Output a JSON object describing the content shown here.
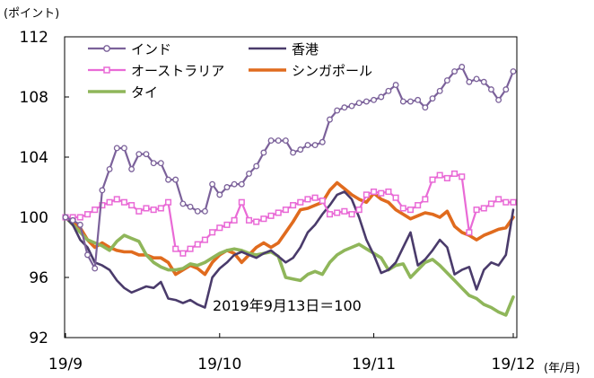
{
  "chart_data": {
    "type": "line",
    "unit_label": "(ポイント)",
    "axis_unit_label": "(年/月)",
    "annotation": "2019年9月13日＝100",
    "ylim": [
      92,
      112
    ],
    "yticks": [
      92,
      96,
      100,
      104,
      108,
      112
    ],
    "x_count": 62,
    "xticks": [
      {
        "index": 0,
        "label": "19/9"
      },
      {
        "index": 21,
        "label": "19/10"
      },
      {
        "index": 42,
        "label": "19/11"
      },
      {
        "index": 61,
        "label": "19/12"
      }
    ],
    "series": [
      {
        "name": "インド",
        "color": "#7b619a",
        "marker": "circle",
        "values": [
          100,
          99.8,
          99.5,
          97.5,
          96.6,
          101.8,
          103.2,
          104.6,
          104.6,
          103.2,
          104.2,
          104.2,
          103.6,
          103.6,
          102.5,
          102.5,
          100.9,
          100.7,
          100.4,
          100.4,
          102.2,
          101.5,
          102.0,
          102.2,
          102.2,
          102.9,
          103.4,
          104.3,
          105.1,
          105.1,
          105.1,
          104.3,
          104.5,
          104.8,
          104.8,
          105.0,
          106.5,
          107.1,
          107.3,
          107.4,
          107.6,
          107.7,
          107.8,
          108.0,
          108.4,
          108.8,
          107.7,
          107.7,
          107.8,
          107.3,
          107.9,
          108.4,
          109.1,
          109.7,
          110.0,
          109.0,
          109.2,
          109.0,
          108.5,
          107.8,
          108.5,
          109.7
        ]
      },
      {
        "name": "香港",
        "color": "#4a3b6b",
        "marker": "none",
        "values": [
          100,
          99.5,
          98.5,
          98.0,
          97.0,
          96.8,
          96.5,
          95.8,
          95.3,
          95.0,
          95.2,
          95.4,
          95.3,
          95.7,
          94.6,
          94.5,
          94.3,
          94.5,
          94.2,
          94.0,
          96.0,
          96.6,
          97.0,
          97.5,
          97.7,
          97.5,
          97.3,
          97.6,
          97.8,
          97.4,
          97.0,
          97.3,
          98.0,
          99.0,
          99.5,
          100.2,
          100.8,
          101.5,
          101.7,
          101.2,
          100.0,
          98.5,
          97.5,
          96.3,
          96.5,
          97.0,
          98.0,
          99.0,
          96.8,
          97.2,
          97.8,
          98.5,
          98.0,
          96.2,
          96.5,
          96.7,
          95.2,
          96.5,
          97.0,
          96.8,
          97.5,
          100.5
        ]
      },
      {
        "name": "オーストラリア",
        "color": "#e96ad6",
        "marker": "square",
        "values": [
          100,
          100,
          100,
          100.2,
          100.5,
          100.8,
          101.0,
          101.2,
          101.0,
          100.8,
          100.4,
          100.6,
          100.5,
          100.6,
          101.0,
          97.9,
          97.6,
          97.9,
          98.2,
          98.5,
          99.0,
          99.3,
          99.5,
          99.8,
          101.0,
          99.8,
          99.7,
          99.9,
          100.1,
          100.3,
          100.5,
          100.8,
          101.0,
          101.2,
          101.3,
          101.1,
          100.2,
          100.3,
          100.4,
          100.2,
          100.5,
          101.5,
          101.7,
          101.6,
          101.7,
          101.3,
          100.6,
          100.5,
          100.8,
          101.2,
          102.5,
          102.8,
          102.6,
          102.9,
          102.7,
          99.0,
          100.5,
          100.6,
          100.9,
          101.2,
          101.0,
          101.0
        ]
      },
      {
        "name": "シンガポール",
        "color": "#e06b1e",
        "marker": "none",
        "values": [
          100,
          99.8,
          99.3,
          98.5,
          98.0,
          98.3,
          98.0,
          97.8,
          97.7,
          97.7,
          97.5,
          97.5,
          97.3,
          97.3,
          97.0,
          96.2,
          96.5,
          96.8,
          96.6,
          96.2,
          97.0,
          97.5,
          97.8,
          97.6,
          97.0,
          97.5,
          98.0,
          98.3,
          98.0,
          98.3,
          99.0,
          99.7,
          100.5,
          100.6,
          100.8,
          101.0,
          101.8,
          102.3,
          101.9,
          101.5,
          101.2,
          101.0,
          101.6,
          101.2,
          101.0,
          100.5,
          100.2,
          99.9,
          100.1,
          100.3,
          100.2,
          100.0,
          100.4,
          99.4,
          99.0,
          98.8,
          98.5,
          98.8,
          99.0,
          99.2,
          99.3,
          100.0
        ]
      },
      {
        "name": "タイ",
        "color": "#8fb65a",
        "marker": "none",
        "values": [
          100,
          99.5,
          99.0,
          98.5,
          98.3,
          98.1,
          97.8,
          98.4,
          98.8,
          98.6,
          98.4,
          97.5,
          97.0,
          96.7,
          96.5,
          96.5,
          96.6,
          96.9,
          96.8,
          97.0,
          97.3,
          97.6,
          97.8,
          97.9,
          97.8,
          97.6,
          97.5,
          97.6,
          97.7,
          97.4,
          96.0,
          95.9,
          95.8,
          96.2,
          96.4,
          96.2,
          97.0,
          97.5,
          97.8,
          98.0,
          98.2,
          97.9,
          97.6,
          97.3,
          96.5,
          96.8,
          96.9,
          96.0,
          96.5,
          97.0,
          97.2,
          96.8,
          96.3,
          95.8,
          95.3,
          94.8,
          94.6,
          94.2,
          94.0,
          93.7,
          93.5,
          94.7
        ]
      }
    ]
  }
}
